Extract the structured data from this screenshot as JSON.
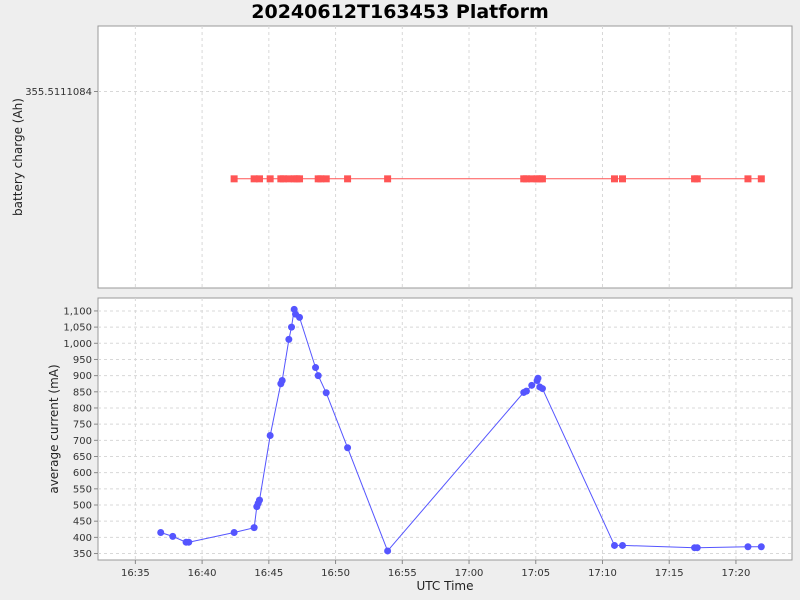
{
  "chart_data": {
    "title": "20240612T163453 Platform",
    "x": {
      "label": "UTC Time",
      "ticks": [
        "16:35",
        "16:40",
        "16:45",
        "16:50",
        "16:55",
        "17:00",
        "17:05",
        "17:10",
        "17:15",
        "17:20"
      ]
    },
    "grid": true,
    "panels": [
      {
        "type": "line",
        "marker": "square",
        "color": "#ff5555",
        "ylabel": "battery charge (Ah)",
        "yticks": [
          "355.5111084"
        ],
        "ylim": [
          355.5111075,
          355.5111087
        ],
        "series": [
          {
            "x": [
              "16:42:24",
              "16:43:54",
              "16:44:18",
              "16:45:06",
              "16:45:54",
              "16:46:06",
              "16:46:30",
              "16:46:54",
              "16:47:06",
              "16:47:18",
              "16:48:42",
              "16:48:54",
              "16:49:18",
              "16:50:54",
              "16:53:54",
              "17:04:06",
              "17:04:18",
              "17:04:42",
              "17:05:06",
              "17:05:18",
              "17:05:30",
              "17:10:54",
              "17:11:30",
              "17:16:54",
              "17:17:06",
              "17:20:54",
              "17:21:54"
            ],
            "y": [
              355.511108,
              355.511108,
              355.511108,
              355.511108,
              355.511108,
              355.511108,
              355.511108,
              355.511108,
              355.511108,
              355.511108,
              355.511108,
              355.511108,
              355.511108,
              355.511108,
              355.511108,
              355.511108,
              355.511108,
              355.511108,
              355.511108,
              355.511108,
              355.511108,
              355.511108,
              355.511108,
              355.511108,
              355.511108,
              355.511108,
              355.511108
            ]
          }
        ]
      },
      {
        "type": "line",
        "marker": "circle",
        "color": "#5555ff",
        "ylabel": "average current (mA)",
        "yticks": [
          "350",
          "400",
          "450",
          "500",
          "550",
          "600",
          "650",
          "700",
          "750",
          "800",
          "850",
          "900",
          "950",
          "1,000",
          "1,050",
          "1,100"
        ],
        "ylim": [
          330,
          1140
        ],
        "series": [
          {
            "x": [
              "16:36:54",
              "16:37:48",
              "16:38:48",
              "16:39:00",
              "16:42:24",
              "16:43:54",
              "16:44:06",
              "16:44:12",
              "16:44:18",
              "16:45:06",
              "16:45:54",
              "16:46:00",
              "16:46:30",
              "16:46:42",
              "16:46:54",
              "16:47:00",
              "16:47:18",
              "16:48:30",
              "16:48:42",
              "16:49:18",
              "16:50:54",
              "16:53:54",
              "17:04:06",
              "17:04:18",
              "17:04:42",
              "17:05:06",
              "17:05:10",
              "17:05:18",
              "17:05:30",
              "17:10:54",
              "17:11:30",
              "17:16:54",
              "17:17:06",
              "17:20:54",
              "17:21:54"
            ],
            "y": [
              415,
              403,
              385,
              385,
              415,
              430,
              495,
              505,
              515,
              715,
              875,
              885,
              1012,
              1050,
              1105,
              1090,
              1080,
              925,
              900,
              847,
              677,
              358,
              848,
              852,
              870,
              885,
              892,
              865,
              860,
              375,
              375,
              368,
              368,
              371,
              371
            ]
          }
        ]
      }
    ]
  }
}
